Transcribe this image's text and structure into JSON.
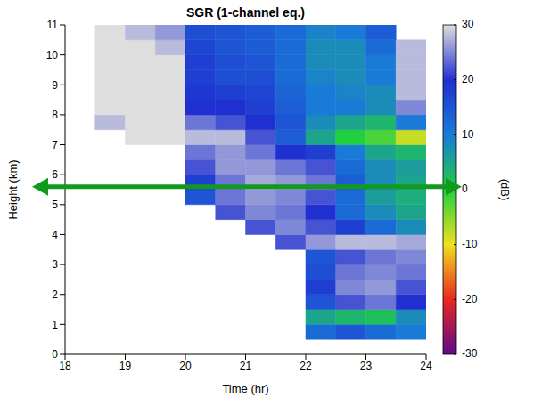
{
  "chart_data": {
    "type": "heatmap",
    "title": "SGR (1-channel eq.)",
    "x_label": "Time (hr)",
    "y_label": "Height (km)",
    "xlim": [
      18,
      24
    ],
    "xticks": [
      18,
      19,
      20,
      21,
      22,
      23,
      24
    ],
    "ylim": [
      0,
      11
    ],
    "yticks": [
      0,
      1,
      2,
      3,
      4,
      5,
      6,
      7,
      8,
      9,
      10,
      11
    ],
    "x_bins": [
      18,
      18.5,
      19,
      19.5,
      20,
      20.5,
      21,
      21.5,
      22,
      22.5,
      23,
      23.5,
      24
    ],
    "y_bins": [
      0,
      0.5,
      1,
      1.5,
      2,
      2.5,
      3,
      3.5,
      4,
      4.5,
      5,
      5.5,
      6,
      6.5,
      7,
      7.5,
      8,
      8.5,
      9,
      9.5,
      10,
      10.5,
      11
    ],
    "cells": [
      [
        null,
        null,
        null,
        null,
        null,
        null,
        null,
        null,
        null,
        null,
        null,
        null
      ],
      [
        null,
        null,
        null,
        null,
        null,
        null,
        null,
        null,
        12,
        15,
        12,
        10
      ],
      [
        null,
        null,
        null,
        null,
        null,
        null,
        null,
        null,
        5,
        3,
        2,
        8
      ],
      [
        null,
        null,
        null,
        null,
        null,
        null,
        null,
        null,
        15,
        22,
        24,
        20
      ],
      [
        null,
        null,
        null,
        null,
        null,
        null,
        null,
        null,
        18,
        25,
        26,
        22
      ],
      [
        null,
        null,
        null,
        null,
        null,
        null,
        null,
        null,
        16,
        24,
        25,
        24
      ],
      [
        null,
        null,
        null,
        null,
        null,
        null,
        null,
        null,
        15,
        22,
        24,
        25
      ],
      [
        null,
        null,
        null,
        null,
        null,
        null,
        null,
        22,
        26,
        28,
        28,
        27
      ],
      [
        null,
        null,
        null,
        null,
        null,
        null,
        22,
        25,
        22,
        18,
        12,
        8
      ],
      [
        null,
        null,
        null,
        null,
        null,
        22,
        25,
        24,
        20,
        12,
        8,
        5
      ],
      [
        null,
        null,
        null,
        null,
        15,
        24,
        26,
        25,
        22,
        12,
        6,
        4
      ],
      [
        null,
        null,
        null,
        null,
        18,
        24,
        27,
        26,
        24,
        14,
        8,
        5
      ],
      [
        null,
        null,
        null,
        null,
        22,
        26,
        26,
        24,
        22,
        12,
        8,
        6
      ],
      [
        null,
        null,
        null,
        null,
        24,
        26,
        24,
        20,
        18,
        10,
        5,
        3
      ],
      [
        null,
        null,
        30,
        30,
        28,
        28,
        22,
        14,
        5,
        0,
        -2,
        -8
      ],
      [
        null,
        28,
        30,
        30,
        24,
        22,
        20,
        15,
        8,
        5,
        3,
        10
      ],
      [
        null,
        30,
        30,
        30,
        20,
        20,
        18,
        14,
        10,
        10,
        8,
        25
      ],
      [
        null,
        30,
        30,
        30,
        19,
        18,
        17,
        13,
        10,
        9,
        8,
        28
      ],
      [
        null,
        30,
        30,
        30,
        18,
        16,
        16,
        12,
        9,
        8,
        10,
        28
      ],
      [
        null,
        30,
        30,
        30,
        18,
        16,
        15,
        12,
        8,
        8,
        10,
        28
      ],
      [
        null,
        30,
        30,
        28,
        17,
        15,
        14,
        12,
        8,
        8,
        12,
        28
      ],
      [
        null,
        30,
        28,
        26,
        16,
        15,
        14,
        12,
        9,
        10,
        14,
        null
      ]
    ],
    "colorbar": {
      "range": [
        -30,
        30
      ],
      "ticks": [
        -30,
        -20,
        -10,
        0,
        10,
        20,
        30
      ],
      "label": "(dB)",
      "colors": [
        "#5c0a8c",
        "#e8281e",
        "#f0e020",
        "#20d040",
        "#1a7ad8",
        "#2030d0",
        "#dedede"
      ]
    },
    "arrow": {
      "y": 5.6,
      "color": "#129a1e"
    }
  }
}
